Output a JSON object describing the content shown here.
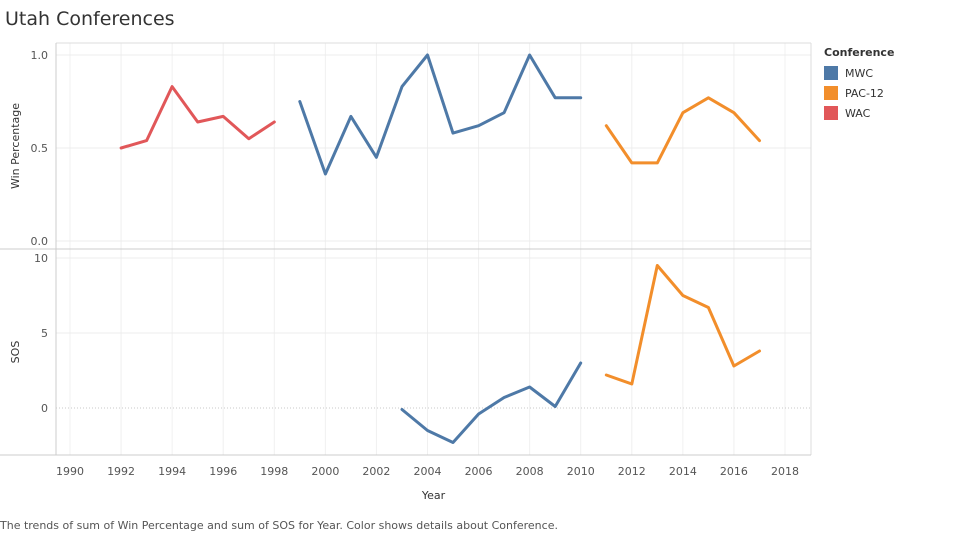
{
  "title": "Utah Conferences",
  "caption": "The trends of sum of Win Percentage and sum of SOS for Year.  Color shows details about Conference.",
  "legend": {
    "title": "Conference",
    "items": [
      {
        "label": "MWC",
        "color": "#4e79a7"
      },
      {
        "label": "PAC-12",
        "color": "#f28e2b"
      },
      {
        "label": "WAC",
        "color": "#e15759"
      }
    ]
  },
  "chart_data": {
    "type": "line",
    "xlabel": "Year",
    "x_ticks": [
      "1990",
      "1992",
      "1994",
      "1996",
      "1998",
      "2000",
      "2002",
      "2004",
      "2006",
      "2008",
      "2010",
      "2012",
      "2014",
      "2016",
      "2018"
    ],
    "xlim": [
      1989,
      2019
    ],
    "grid": true,
    "legend_position": "right",
    "panels": [
      {
        "ylabel": "Win Percentage",
        "ylim": [
          0,
          1.05
        ],
        "y_ticks": [
          "1.0",
          "0.5",
          "0.0"
        ],
        "series": [
          {
            "name": "WAC",
            "color": "#e15759",
            "points": [
              [
                1992,
                0.5
              ],
              [
                1993,
                0.54
              ],
              [
                1994,
                0.83
              ],
              [
                1995,
                0.64
              ],
              [
                1996,
                0.67
              ],
              [
                1997,
                0.55
              ],
              [
                1998,
                0.64
              ]
            ]
          },
          {
            "name": "MWC",
            "color": "#4e79a7",
            "points": [
              [
                1999,
                0.75
              ],
              [
                2000,
                0.36
              ],
              [
                2001,
                0.67
              ],
              [
                2002,
                0.45
              ],
              [
                2003,
                0.83
              ],
              [
                2004,
                1.0
              ],
              [
                2005,
                0.58
              ],
              [
                2006,
                0.62
              ],
              [
                2007,
                0.69
              ],
              [
                2008,
                1.0
              ],
              [
                2009,
                0.77
              ],
              [
                2010,
                0.77
              ]
            ]
          },
          {
            "name": "PAC-12",
            "color": "#f28e2b",
            "points": [
              [
                2011,
                0.62
              ],
              [
                2012,
                0.42
              ],
              [
                2013,
                0.42
              ],
              [
                2014,
                0.69
              ],
              [
                2015,
                0.77
              ],
              [
                2016,
                0.69
              ],
              [
                2017,
                0.54
              ]
            ]
          }
        ]
      },
      {
        "ylabel": "SOS",
        "ylim": [
          -3,
          11
        ],
        "y_ticks": [
          "10",
          "5",
          "0"
        ],
        "series": [
          {
            "name": "MWC",
            "color": "#4e79a7",
            "points": [
              [
                2003,
                -0.1
              ],
              [
                2004,
                -1.5
              ],
              [
                2005,
                -2.3
              ],
              [
                2006,
                -0.4
              ],
              [
                2007,
                0.7
              ],
              [
                2008,
                1.4
              ],
              [
                2009,
                0.1
              ],
              [
                2010,
                3.0
              ]
            ]
          },
          {
            "name": "PAC-12",
            "color": "#f28e2b",
            "points": [
              [
                2011,
                2.2
              ],
              [
                2012,
                1.6
              ],
              [
                2013,
                9.5
              ],
              [
                2014,
                7.5
              ],
              [
                2015,
                6.7
              ],
              [
                2016,
                2.8
              ],
              [
                2017,
                3.8
              ]
            ]
          }
        ]
      }
    ]
  }
}
